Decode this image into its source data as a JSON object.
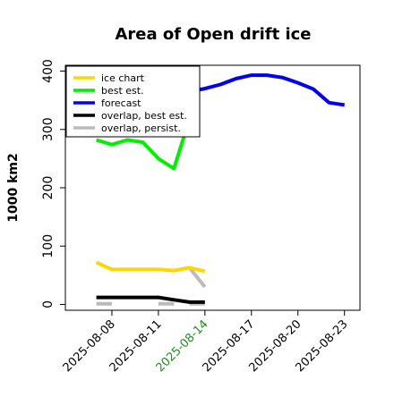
{
  "chart_data": {
    "type": "line",
    "title": "Area of Open drift ice",
    "xlabel": "",
    "ylabel": "1000 km2",
    "ylim": [
      -10,
      410
    ],
    "yticks": [
      0,
      100,
      200,
      300,
      400
    ],
    "x_axis": {
      "min": "2025-08-05",
      "max": "2025-08-24",
      "ticks": [
        "2025-08-08",
        "2025-08-11",
        "2025-08-14",
        "2025-08-17",
        "2025-08-20",
        "2025-08-23"
      ],
      "highlight_tick": "2025-08-14",
      "highlight_color": "#228B22"
    },
    "grid": false,
    "legend_position": "top-left",
    "series": [
      {
        "name": "ice chart",
        "color": "#FFD700",
        "x": [
          "2025-08-07",
          "2025-08-08",
          "2025-08-11",
          "2025-08-12",
          "2025-08-13",
          "2025-08-14"
        ],
        "y": [
          72,
          60,
          60,
          58,
          63,
          57
        ]
      },
      {
        "name": "best est.",
        "color": "#00EE00",
        "x": [
          "2025-08-07",
          "2025-08-08",
          "2025-08-09",
          "2025-08-10",
          "2025-08-11",
          "2025-08-12",
          "2025-08-13.6"
        ],
        "y": [
          282,
          274,
          282,
          278,
          250,
          233,
          368
        ]
      },
      {
        "name": "forecast",
        "color": "#0000EE",
        "x": [
          "2025-08-13.6",
          "2025-08-14",
          "2025-08-15",
          "2025-08-16",
          "2025-08-17",
          "2025-08-18",
          "2025-08-19",
          "2025-08-20",
          "2025-08-21",
          "2025-08-22",
          "2025-08-23"
        ],
        "y": [
          368,
          370,
          377,
          387,
          393,
          393,
          389,
          380,
          369,
          346,
          342
        ]
      },
      {
        "name": "overlap, best est.",
        "color": "#000000",
        "x": [
          "2025-08-07",
          "2025-08-08",
          "2025-08-11",
          "2025-08-12",
          "2025-08-13",
          "2025-08-14"
        ],
        "y": [
          12,
          12,
          12,
          8,
          4,
          4
        ]
      },
      {
        "name": "overlap, persist.",
        "color": "#BBBBBB",
        "segments": [
          {
            "x": [
              "2025-08-07",
              "2025-08-08"
            ],
            "y": [
              1,
              1
            ]
          },
          {
            "x": [
              "2025-08-11",
              "2025-08-12"
            ],
            "y": [
              1,
              1
            ]
          },
          {
            "x": [
              "2025-08-13",
              "2025-08-14"
            ],
            "y": [
              63,
              30
            ]
          },
          {
            "x": [
              "2025-08-13",
              "2025-08-14"
            ],
            "y": [
              1,
              1
            ]
          }
        ]
      }
    ]
  }
}
